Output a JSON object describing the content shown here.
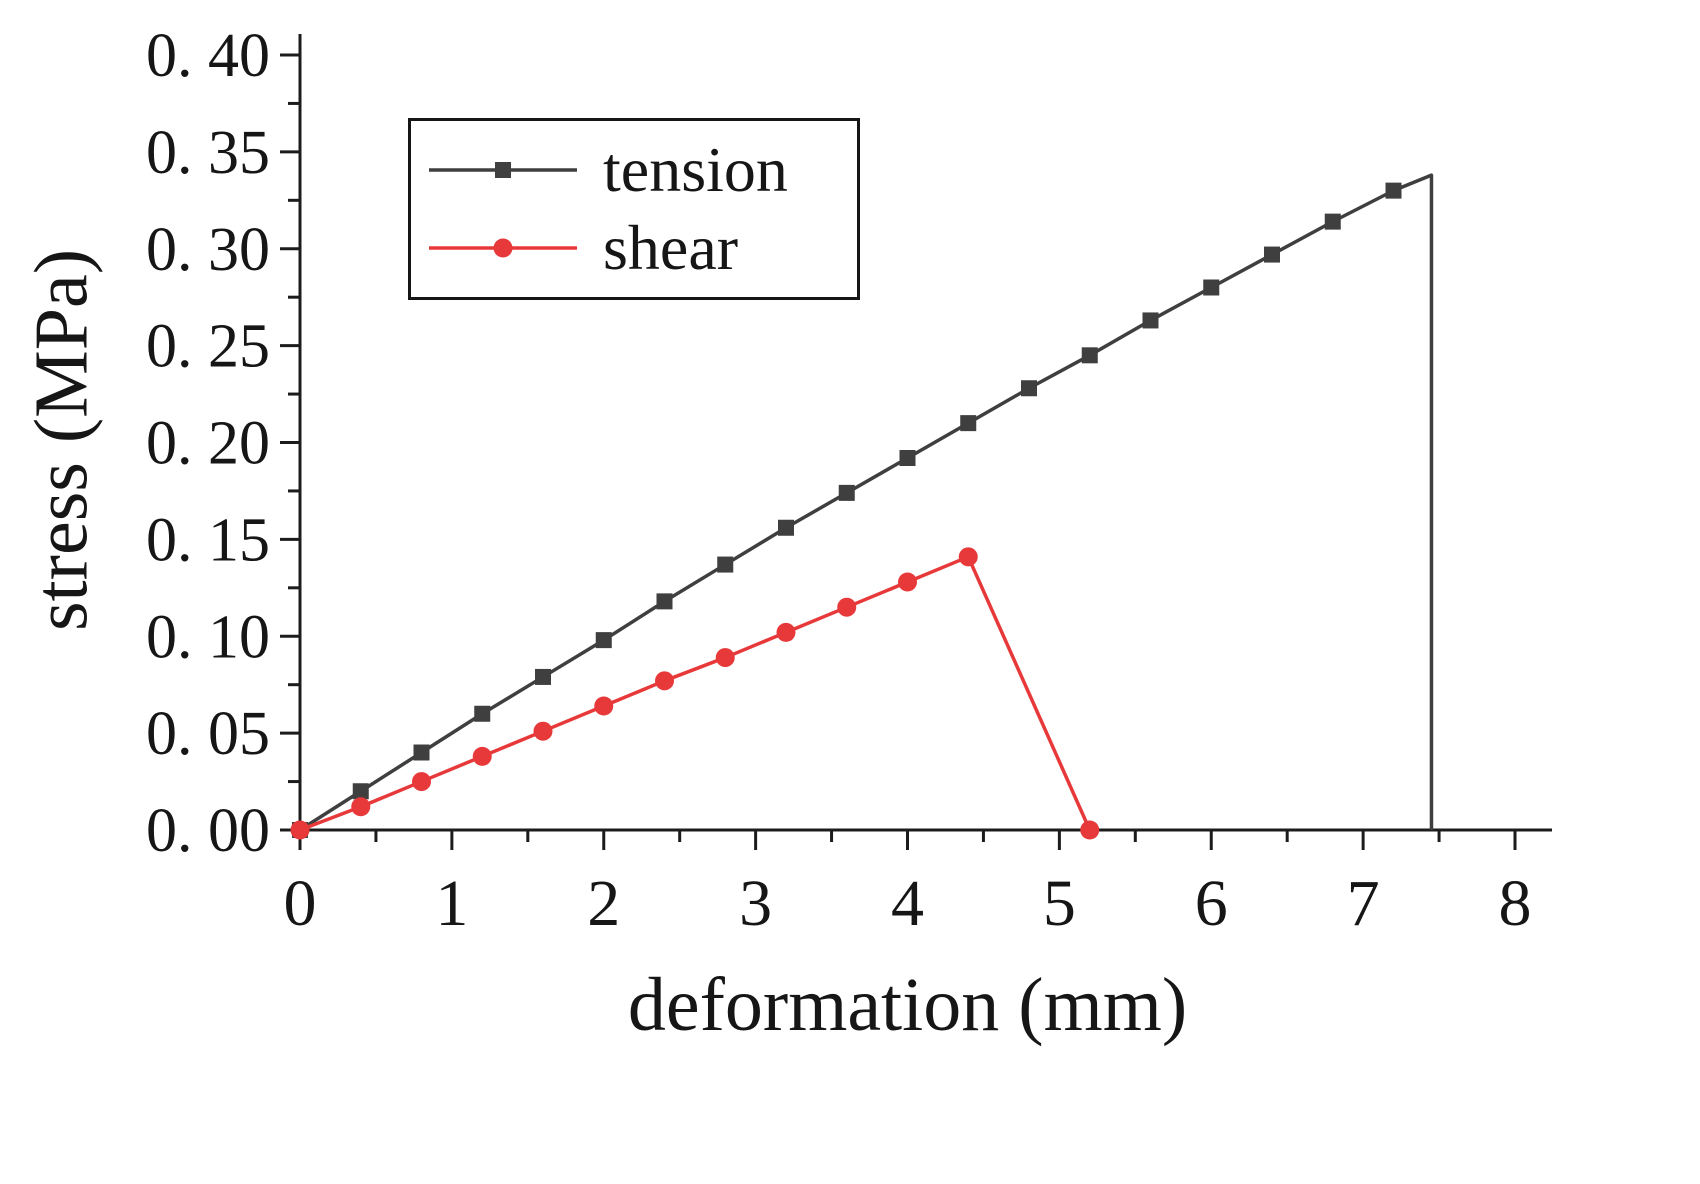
{
  "chart_data": {
    "type": "line",
    "title": "",
    "xlabel": "deformation (mm)",
    "ylabel": "stress (MPa)",
    "xlim": [
      0,
      8
    ],
    "ylim": [
      0,
      0.4
    ],
    "grid": false,
    "legend_position": "upper-left-inside",
    "axis_color": "#1c1c1c",
    "text_color": "#161616",
    "x_ticks": [
      0,
      1,
      2,
      3,
      4,
      5,
      6,
      7,
      8
    ],
    "x_tick_labels": [
      "0",
      "1",
      "2",
      "3",
      "4",
      "5",
      "6",
      "7",
      "8"
    ],
    "x_minor_step": 0.5,
    "y_ticks": [
      0,
      0.05,
      0.1,
      0.15,
      0.2,
      0.25,
      0.3,
      0.35,
      0.4
    ],
    "y_tick_labels": [
      "0. 00",
      "0. 05",
      "0. 10",
      "0. 15",
      "0. 20",
      "0. 25",
      "0. 30",
      "0. 35",
      "0. 40"
    ],
    "y_minor_step": 0.025,
    "series": [
      {
        "name": "tension",
        "color": "#3f3f3f",
        "marker": "square",
        "marker_count": 19,
        "points": [
          [
            0,
            0
          ],
          [
            0.4,
            0.02
          ],
          [
            0.8,
            0.04
          ],
          [
            1.2,
            0.06
          ],
          [
            1.6,
            0.079
          ],
          [
            2.0,
            0.098
          ],
          [
            2.4,
            0.118
          ],
          [
            2.8,
            0.137
          ],
          [
            3.2,
            0.156
          ],
          [
            3.6,
            0.174
          ],
          [
            4.0,
            0.192
          ],
          [
            4.4,
            0.21
          ],
          [
            4.8,
            0.228
          ],
          [
            5.2,
            0.245
          ],
          [
            5.6,
            0.263
          ],
          [
            6.0,
            0.28
          ],
          [
            6.4,
            0.297
          ],
          [
            6.8,
            0.314
          ],
          [
            7.2,
            0.33
          ],
          [
            7.45,
            0.338
          ],
          [
            7.45,
            0
          ]
        ]
      },
      {
        "name": "shear",
        "color": "#e8393a",
        "marker": "circle",
        "marker_count": 13,
        "points": [
          [
            0,
            0
          ],
          [
            0.4,
            0.012
          ],
          [
            0.8,
            0.025
          ],
          [
            1.2,
            0.038
          ],
          [
            1.6,
            0.051
          ],
          [
            2.0,
            0.064
          ],
          [
            2.4,
            0.077
          ],
          [
            2.8,
            0.089
          ],
          [
            3.2,
            0.102
          ],
          [
            3.6,
            0.115
          ],
          [
            4.0,
            0.128
          ],
          [
            4.4,
            0.141
          ],
          [
            5.2,
            0
          ]
        ]
      }
    ]
  }
}
